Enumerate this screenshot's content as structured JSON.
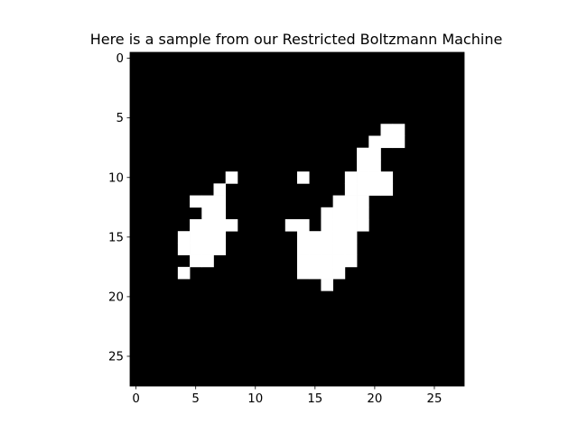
{
  "chart_data": {
    "type": "heatmap",
    "title": "Here is a sample from our Restricted Boltzmann Machine",
    "xlabel": "",
    "ylabel": "",
    "rows": 28,
    "cols": 28,
    "xlim": [
      -0.5,
      27.5
    ],
    "ylim": [
      27.5,
      -0.5
    ],
    "xticks": [
      0,
      5,
      10,
      15,
      20,
      25
    ],
    "yticks": [
      0,
      5,
      10,
      15,
      20,
      25
    ],
    "grid": false,
    "colormap": "gray",
    "colors": {
      "on": "#ffffff",
      "off": "#000000"
    },
    "on_pixels": [
      [
        6,
        21
      ],
      [
        6,
        22
      ],
      [
        7,
        20
      ],
      [
        7,
        21
      ],
      [
        7,
        22
      ],
      [
        8,
        19
      ],
      [
        8,
        20
      ],
      [
        9,
        19
      ],
      [
        9,
        20
      ],
      [
        10,
        8
      ],
      [
        10,
        14
      ],
      [
        10,
        18
      ],
      [
        10,
        19
      ],
      [
        10,
        20
      ],
      [
        10,
        21
      ],
      [
        11,
        7
      ],
      [
        11,
        18
      ],
      [
        11,
        19
      ],
      [
        11,
        20
      ],
      [
        11,
        21
      ],
      [
        12,
        5
      ],
      [
        12,
        6
      ],
      [
        12,
        7
      ],
      [
        12,
        17
      ],
      [
        12,
        18
      ],
      [
        12,
        19
      ],
      [
        13,
        6
      ],
      [
        13,
        7
      ],
      [
        13,
        16
      ],
      [
        13,
        17
      ],
      [
        13,
        18
      ],
      [
        13,
        19
      ],
      [
        14,
        5
      ],
      [
        14,
        6
      ],
      [
        14,
        7
      ],
      [
        14,
        8
      ],
      [
        14,
        13
      ],
      [
        14,
        14
      ],
      [
        14,
        16
      ],
      [
        14,
        17
      ],
      [
        14,
        18
      ],
      [
        14,
        19
      ],
      [
        15,
        4
      ],
      [
        15,
        5
      ],
      [
        15,
        6
      ],
      [
        15,
        7
      ],
      [
        15,
        14
      ],
      [
        15,
        15
      ],
      [
        15,
        16
      ],
      [
        15,
        17
      ],
      [
        15,
        18
      ],
      [
        16,
        4
      ],
      [
        16,
        5
      ],
      [
        16,
        6
      ],
      [
        16,
        7
      ],
      [
        16,
        14
      ],
      [
        16,
        15
      ],
      [
        16,
        16
      ],
      [
        16,
        17
      ],
      [
        16,
        18
      ],
      [
        17,
        5
      ],
      [
        17,
        6
      ],
      [
        17,
        14
      ],
      [
        17,
        15
      ],
      [
        17,
        16
      ],
      [
        17,
        17
      ],
      [
        17,
        18
      ],
      [
        18,
        4
      ],
      [
        18,
        14
      ],
      [
        18,
        15
      ],
      [
        18,
        16
      ],
      [
        18,
        17
      ],
      [
        19,
        16
      ]
    ]
  }
}
